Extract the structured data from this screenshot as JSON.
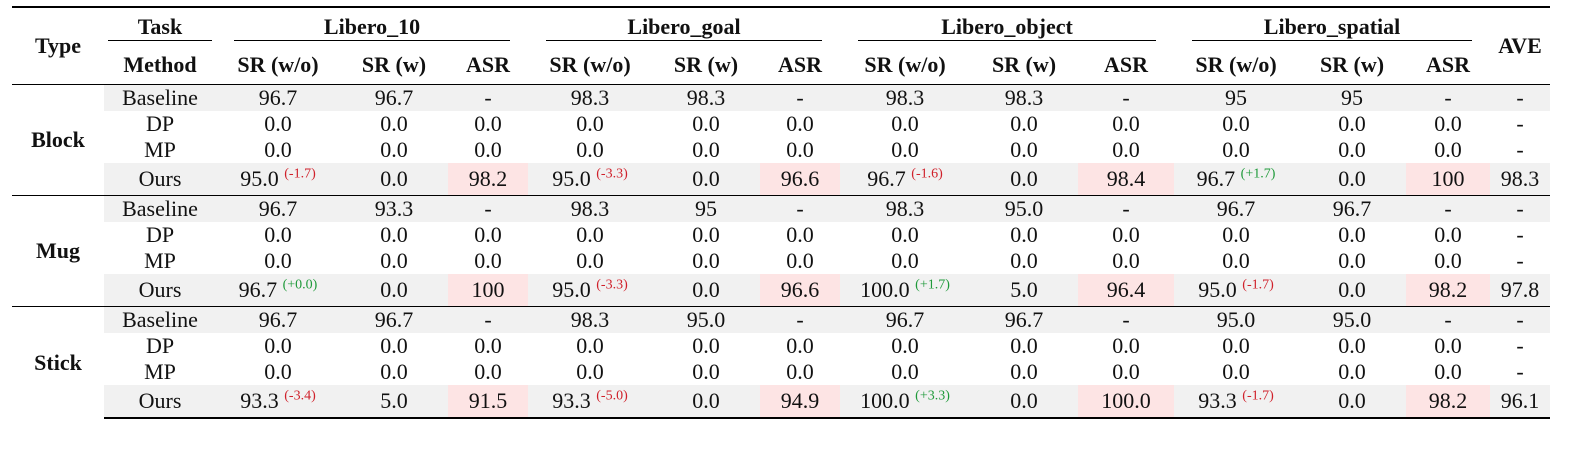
{
  "headers": {
    "type": "Type",
    "task": "Task",
    "method": "Method",
    "ave": "AVE",
    "groups": [
      "Libero_10",
      "Libero_goal",
      "Libero_object",
      "Libero_spatial"
    ],
    "cols": [
      "SR (w/o)",
      "SR (w)",
      "ASR"
    ]
  },
  "blocks": [
    {
      "type": "Block",
      "rows": [
        {
          "method": "Baseline",
          "cells": [
            [
              "96.7",
              "",
              "96.7",
              "-"
            ],
            [
              "98.3",
              "",
              "98.3",
              "-"
            ],
            [
              "98.3",
              "",
              "98.3",
              "-"
            ],
            [
              "95",
              "",
              "95",
              "-"
            ]
          ],
          "ave": "-"
        },
        {
          "method": "DP",
          "cells": [
            [
              "0.0",
              "",
              "0.0",
              "0.0"
            ],
            [
              "0.0",
              "",
              "0.0",
              "0.0"
            ],
            [
              "0.0",
              "",
              "0.0",
              "0.0"
            ],
            [
              "0.0",
              "",
              "0.0",
              "0.0"
            ]
          ],
          "ave": "-"
        },
        {
          "method": "MP",
          "cells": [
            [
              "0.0",
              "",
              "0.0",
              "0.0"
            ],
            [
              "0.0",
              "",
              "0.0",
              "0.0"
            ],
            [
              "0.0",
              "",
              "0.0",
              "0.0"
            ],
            [
              "0.0",
              "",
              "0.0",
              "0.0"
            ]
          ],
          "ave": "-"
        },
        {
          "method": "Ours",
          "cells": [
            [
              "95.0",
              "(-1.7)",
              "0.0",
              "98.2"
            ],
            [
              "95.0",
              "(-3.3)",
              "0.0",
              "96.6"
            ],
            [
              "96.7",
              "(-1.6)",
              "0.0",
              "98.4"
            ],
            [
              "96.7",
              "(+1.7)",
              "0.0",
              "100"
            ]
          ],
          "ave": "98.3"
        }
      ]
    },
    {
      "type": "Mug",
      "rows": [
        {
          "method": "Baseline",
          "cells": [
            [
              "96.7",
              "",
              "93.3",
              "-"
            ],
            [
              "98.3",
              "",
              "95",
              "-"
            ],
            [
              "98.3",
              "",
              "95.0",
              "-"
            ],
            [
              "96.7",
              "",
              "96.7",
              "-"
            ]
          ],
          "ave": "-"
        },
        {
          "method": "DP",
          "cells": [
            [
              "0.0",
              "",
              "0.0",
              "0.0"
            ],
            [
              "0.0",
              "",
              "0.0",
              "0.0"
            ],
            [
              "0.0",
              "",
              "0.0",
              "0.0"
            ],
            [
              "0.0",
              "",
              "0.0",
              "0.0"
            ]
          ],
          "ave": "-"
        },
        {
          "method": "MP",
          "cells": [
            [
              "0.0",
              "",
              "0.0",
              "0.0"
            ],
            [
              "0.0",
              "",
              "0.0",
              "0.0"
            ],
            [
              "0.0",
              "",
              "0.0",
              "0.0"
            ],
            [
              "0.0",
              "",
              "0.0",
              "0.0"
            ]
          ],
          "ave": "-"
        },
        {
          "method": "Ours",
          "cells": [
            [
              "96.7",
              "(+0.0)",
              "0.0",
              "100"
            ],
            [
              "95.0",
              "(-3.3)",
              "0.0",
              "96.6"
            ],
            [
              "100.0",
              "(+1.7)",
              "5.0",
              "96.4"
            ],
            [
              "95.0",
              "(-1.7)",
              "0.0",
              "98.2"
            ]
          ],
          "ave": "97.8"
        }
      ]
    },
    {
      "type": "Stick",
      "rows": [
        {
          "method": "Baseline",
          "cells": [
            [
              "96.7",
              "",
              "96.7",
              "-"
            ],
            [
              "98.3",
              "",
              "95.0",
              "-"
            ],
            [
              "96.7",
              "",
              "96.7",
              "-"
            ],
            [
              "95.0",
              "",
              "95.0",
              "-"
            ]
          ],
          "ave": "-"
        },
        {
          "method": "DP",
          "cells": [
            [
              "0.0",
              "",
              "0.0",
              "0.0"
            ],
            [
              "0.0",
              "",
              "0.0",
              "0.0"
            ],
            [
              "0.0",
              "",
              "0.0",
              "0.0"
            ],
            [
              "0.0",
              "",
              "0.0",
              "0.0"
            ]
          ],
          "ave": "-"
        },
        {
          "method": "MP",
          "cells": [
            [
              "0.0",
              "",
              "0.0",
              "0.0"
            ],
            [
              "0.0",
              "",
              "0.0",
              "0.0"
            ],
            [
              "0.0",
              "",
              "0.0",
              "0.0"
            ],
            [
              "0.0",
              "",
              "0.0",
              "0.0"
            ]
          ],
          "ave": "-"
        },
        {
          "method": "Ours",
          "cells": [
            [
              "93.3",
              "(-3.4)",
              "5.0",
              "91.5"
            ],
            [
              "93.3",
              "(-5.0)",
              "0.0",
              "94.9"
            ],
            [
              "100.0",
              "(+3.3)",
              "0.0",
              "100.0"
            ],
            [
              "93.3",
              "(-1.7)",
              "0.0",
              "98.2"
            ]
          ],
          "ave": "96.1"
        }
      ]
    }
  ],
  "colors": {
    "negative_delta": "#d0202a",
    "positive_delta": "#1f9a3a",
    "asr_highlight": "#fde4e4",
    "row_shade": "#f1f1f1"
  }
}
